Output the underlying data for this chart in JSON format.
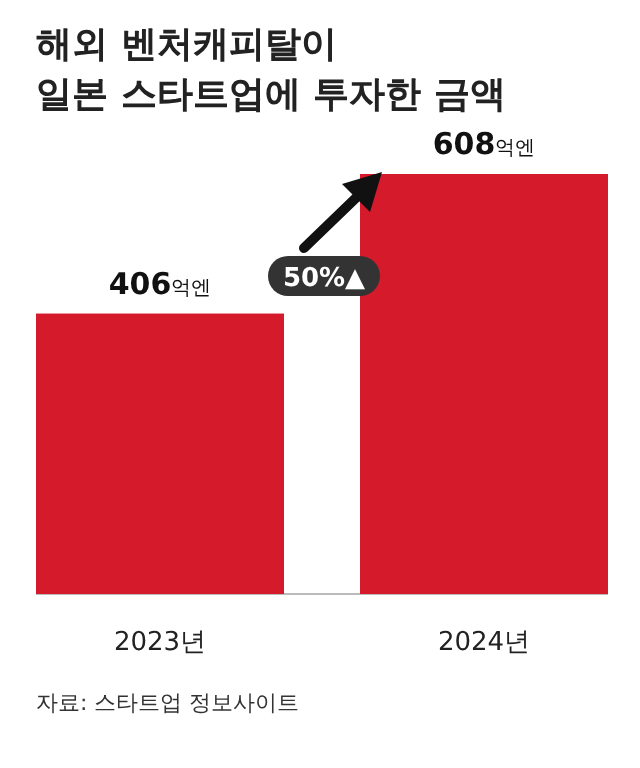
{
  "chart_data": {
    "type": "bar",
    "title": "해외 벤처캐피탈이\n일본 스타트업에 투자한 금액",
    "categories": [
      "2023년",
      "2024년"
    ],
    "values": [
      406,
      608
    ],
    "value_labels": [
      "406억엔",
      "608억엔"
    ],
    "color": "#d51a2c",
    "annotations": [
      "50%▲",
      "자료: 스타트업 정보사이트"
    ]
  }
}
